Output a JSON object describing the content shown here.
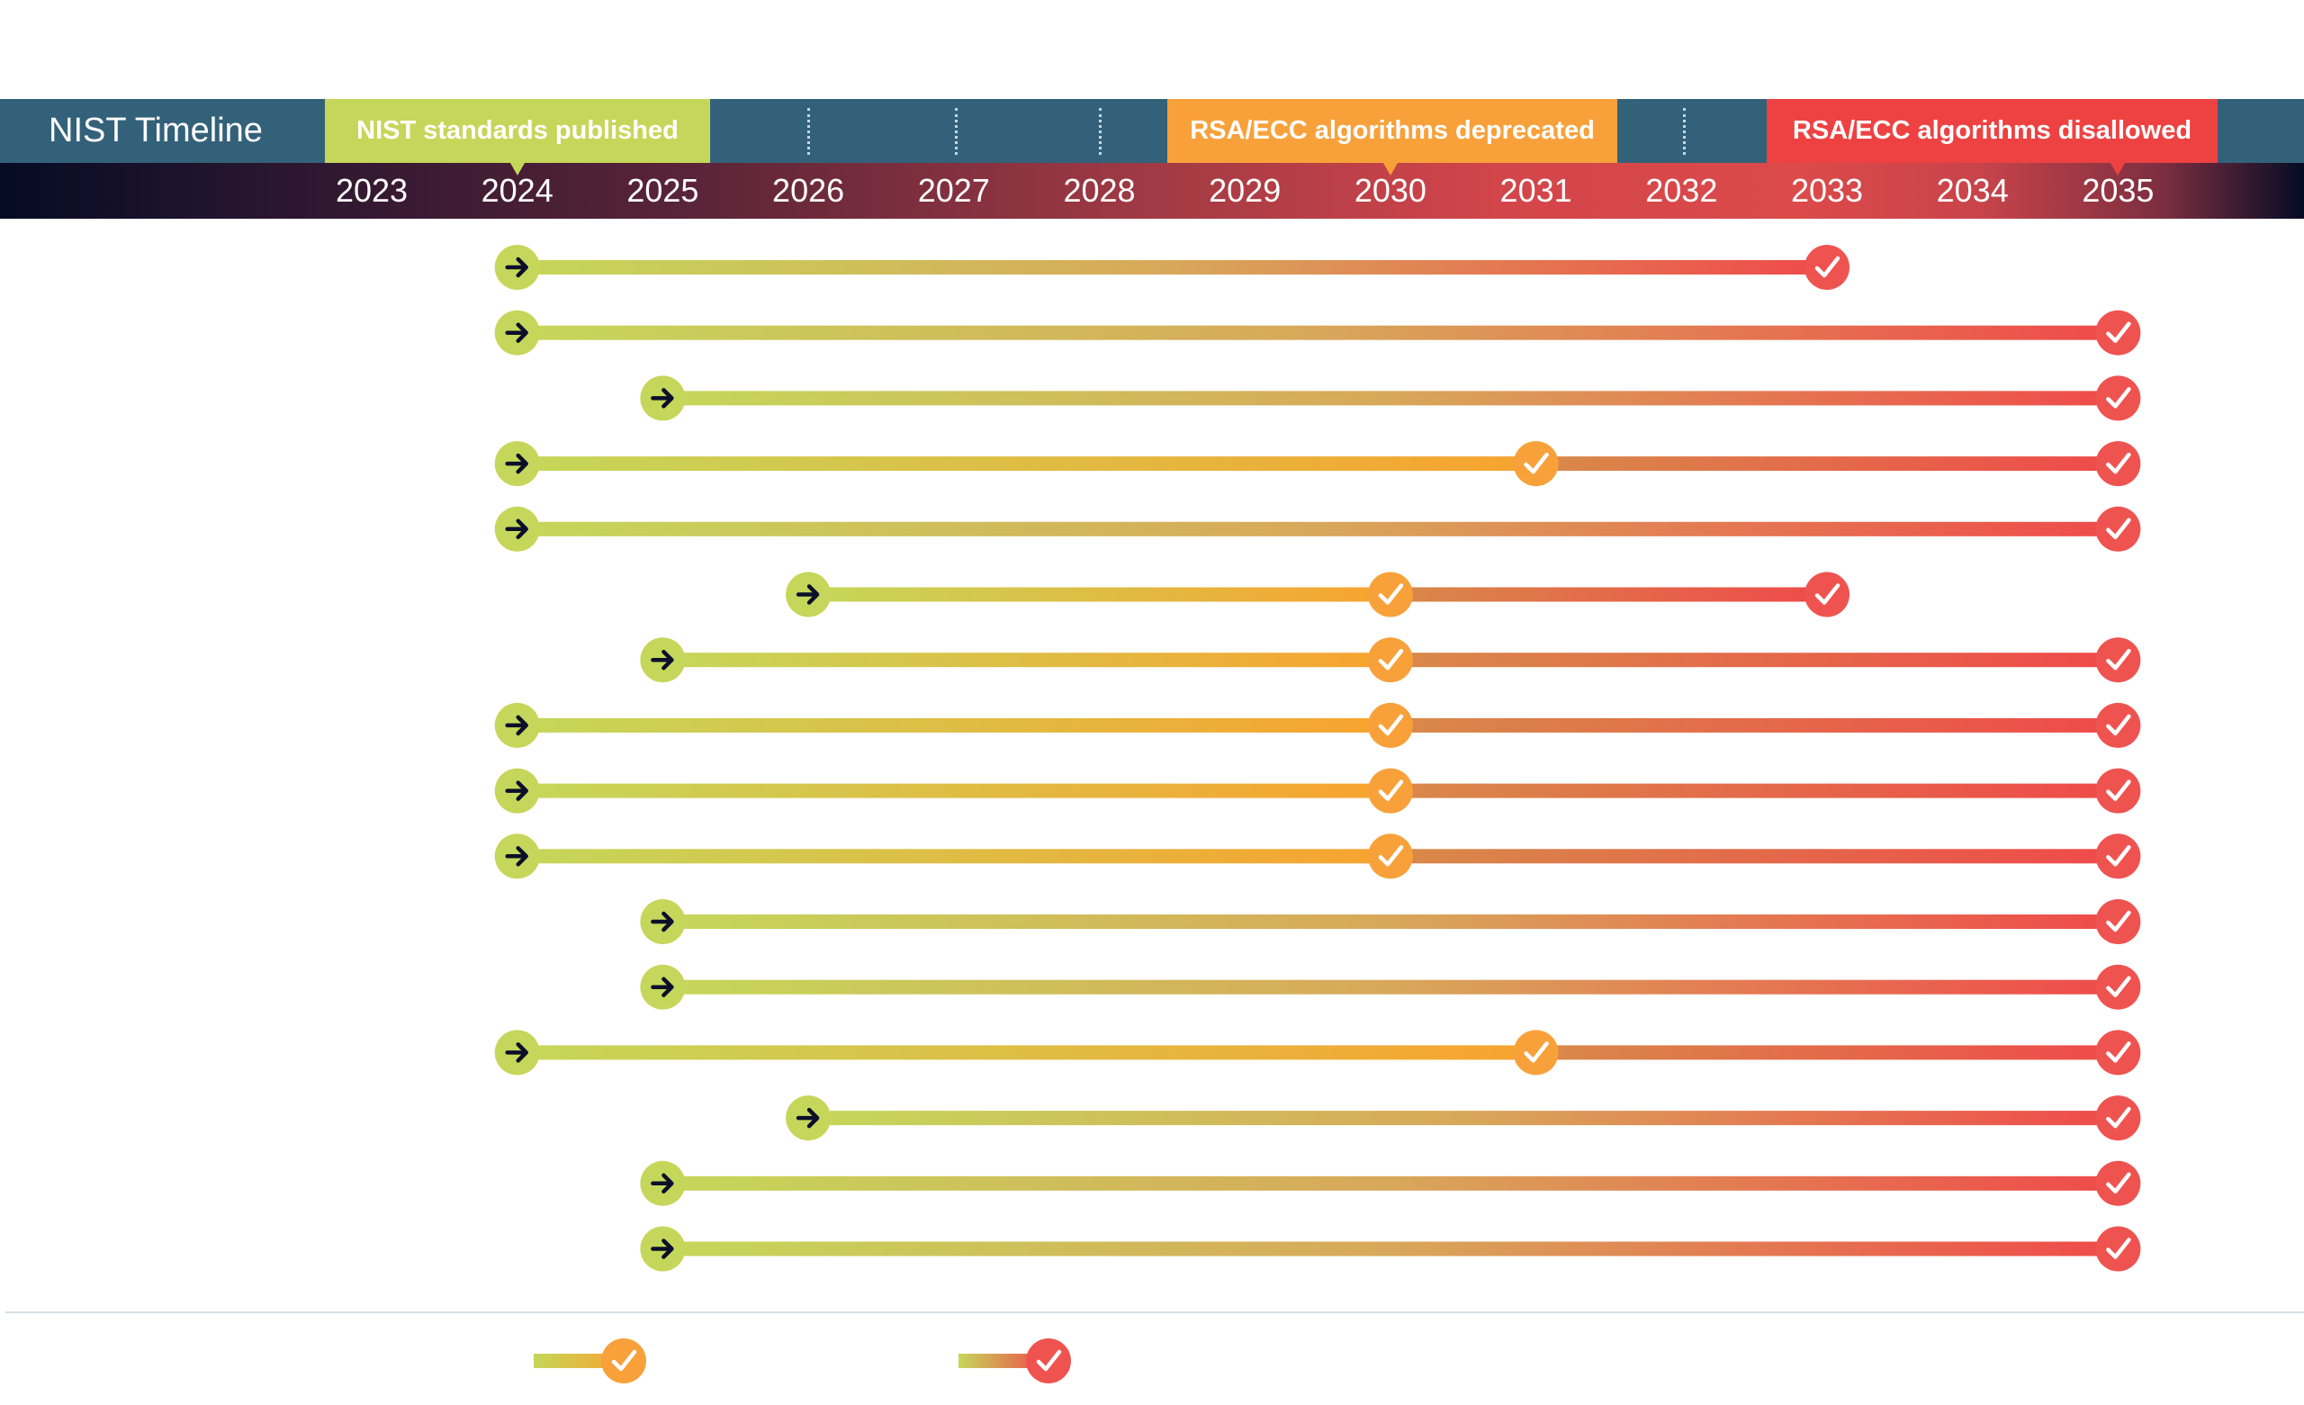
{
  "header": {
    "title": "NIST Timeline",
    "milestones": [
      {
        "label": "NIST standards published",
        "year": 2024,
        "color": "#c5d75a"
      },
      {
        "label": "RSA/ECC algorithms deprecated",
        "year": 2030,
        "color": "#f8a13a"
      },
      {
        "label": "RSA/ECC algorithms disallowed",
        "year": 2035,
        "color": "#ee4242"
      }
    ]
  },
  "colors": {
    "header_bg": "#34617a",
    "start_marker": "#c5d75a",
    "deprecate_marker": "#f8a13a",
    "disallow_marker": "#ef5350",
    "arrow": "#0b0f2a"
  },
  "chart_data": {
    "type": "timeline",
    "title": "NIST Timeline",
    "xlabel": "",
    "ylabel": "",
    "x_ticks": [
      2023,
      2024,
      2025,
      2026,
      2027,
      2028,
      2029,
      2030,
      2031,
      2032,
      2033,
      2034,
      2035
    ],
    "xlim": [
      2023,
      2035
    ],
    "rows": [
      {
        "start": 2024,
        "deprecated": null,
        "disallowed": 2033
      },
      {
        "start": 2024,
        "deprecated": null,
        "disallowed": 2035
      },
      {
        "start": 2025,
        "deprecated": null,
        "disallowed": 2035
      },
      {
        "start": 2024,
        "deprecated": 2031,
        "disallowed": 2035
      },
      {
        "start": 2024,
        "deprecated": null,
        "disallowed": 2035
      },
      {
        "start": 2026,
        "deprecated": 2030,
        "disallowed": 2033
      },
      {
        "start": 2025,
        "deprecated": 2030,
        "disallowed": 2035
      },
      {
        "start": 2024,
        "deprecated": 2030,
        "disallowed": 2035
      },
      {
        "start": 2024,
        "deprecated": 2030,
        "disallowed": 2035
      },
      {
        "start": 2024,
        "deprecated": 2030,
        "disallowed": 2035
      },
      {
        "start": 2025,
        "deprecated": null,
        "disallowed": 2035
      },
      {
        "start": 2025,
        "deprecated": null,
        "disallowed": 2035
      },
      {
        "start": 2024,
        "deprecated": 2031,
        "disallowed": 2035
      },
      {
        "start": 2026,
        "deprecated": null,
        "disallowed": 2035
      },
      {
        "start": 2025,
        "deprecated": null,
        "disallowed": 2035
      },
      {
        "start": 2025,
        "deprecated": null,
        "disallowed": 2035
      }
    ],
    "legend": [
      {
        "name": "deprecated",
        "marker": "orange-check"
      },
      {
        "name": "disallowed",
        "marker": "red-check"
      }
    ],
    "legend_position": "bottom-left"
  }
}
